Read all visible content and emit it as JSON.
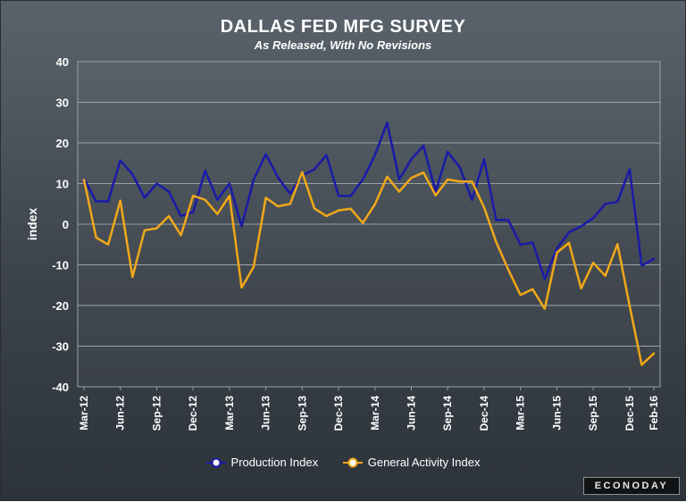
{
  "chart_data": {
    "type": "line",
    "title": "DALLAS FED MFG SURVEY",
    "subtitle": "As Released, With No Revisions",
    "ylabel": "index",
    "ylim": [
      -40,
      40
    ],
    "yticks": [
      40,
      30,
      20,
      10,
      0,
      -10,
      -20,
      -30,
      -40
    ],
    "grid": true,
    "legend_position": "bottom",
    "x_tick_labels": [
      "Mar-12",
      "Jun-12",
      "Sep-12",
      "Dec-12",
      "Mar-13",
      "Jun-13",
      "Sep-13",
      "Dec-13",
      "Mar-14",
      "Jun-14",
      "Sep-14",
      "Dec-14",
      "Mar-15",
      "Jun-15",
      "Sep-15",
      "Dec-15",
      "Feb-16"
    ],
    "x": [
      "Mar-12",
      "Apr-12",
      "May-12",
      "Jun-12",
      "Jul-12",
      "Aug-12",
      "Sep-12",
      "Oct-12",
      "Nov-12",
      "Dec-12",
      "Jan-13",
      "Feb-13",
      "Mar-13",
      "Apr-13",
      "May-13",
      "Jun-13",
      "Jul-13",
      "Aug-13",
      "Sep-13",
      "Oct-13",
      "Nov-13",
      "Dec-13",
      "Jan-14",
      "Feb-14",
      "Mar-14",
      "Apr-14",
      "May-14",
      "Jun-14",
      "Jul-14",
      "Aug-14",
      "Sep-14",
      "Oct-14",
      "Nov-14",
      "Dec-14",
      "Jan-15",
      "Feb-15",
      "Mar-15",
      "Apr-15",
      "May-15",
      "Jun-15",
      "Jul-15",
      "Aug-15",
      "Sep-15",
      "Oct-15",
      "Nov-15",
      "Dec-15",
      "Jan-16",
      "Feb-16"
    ],
    "series": [
      {
        "name": "Production Index",
        "color": "#1a1aa8",
        "values": [
          11.2,
          5.6,
          5.6,
          15.7,
          12.3,
          6.5,
          10.0,
          8.0,
          2.0,
          3.0,
          13.2,
          6.0,
          10.0,
          -0.5,
          11.0,
          17.2,
          11.5,
          7.5,
          12.0,
          13.5,
          17.0,
          7.0,
          7.0,
          11.0,
          17.0,
          25.0,
          11.0,
          16.0,
          19.3,
          8.0,
          17.8,
          14.0,
          6.0,
          16.0,
          1.0,
          1.0,
          -5.0,
          -4.5,
          -13.5,
          -6.0,
          -2.0,
          -0.5,
          1.5,
          5.0,
          5.5,
          13.5,
          -10.2,
          -8.5
        ]
      },
      {
        "name": "General Activity Index",
        "color": "#f0a818",
        "values": [
          11.0,
          -3.3,
          -5.0,
          5.8,
          -13.0,
          -1.5,
          -1.0,
          2.0,
          -2.7,
          7.0,
          6.0,
          2.5,
          7.0,
          -15.6,
          -10.5,
          6.5,
          4.4,
          5.0,
          12.8,
          3.9,
          2.0,
          3.4,
          3.8,
          0.3,
          4.9,
          11.7,
          8.0,
          11.4,
          12.7,
          7.1,
          11.0,
          10.5,
          10.5,
          4.1,
          -4.4,
          -11.2,
          -17.4,
          -16.0,
          -20.8,
          -7.0,
          -4.6,
          -15.8,
          -9.5,
          -12.7,
          -4.9,
          -20.1,
          -34.6,
          -31.8
        ]
      }
    ]
  },
  "brand": "ECONODAY"
}
